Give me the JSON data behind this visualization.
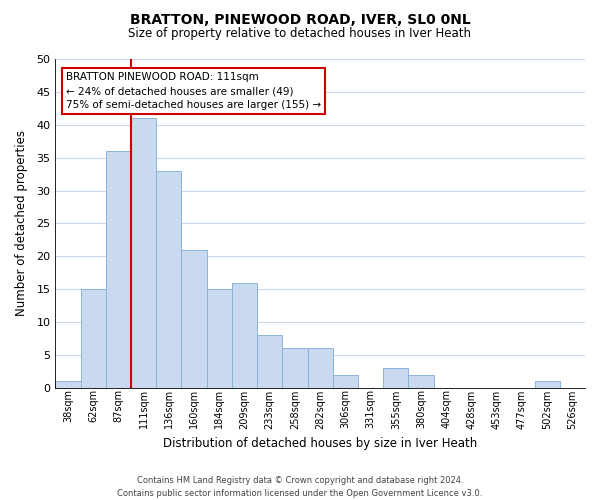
{
  "title": "BRATTON, PINEWOOD ROAD, IVER, SL0 0NL",
  "subtitle": "Size of property relative to detached houses in Iver Heath",
  "xlabel": "Distribution of detached houses by size in Iver Heath",
  "ylabel": "Number of detached properties",
  "bar_labels": [
    "38sqm",
    "62sqm",
    "87sqm",
    "111sqm",
    "136sqm",
    "160sqm",
    "184sqm",
    "209sqm",
    "233sqm",
    "258sqm",
    "282sqm",
    "306sqm",
    "331sqm",
    "355sqm",
    "380sqm",
    "404sqm",
    "428sqm",
    "453sqm",
    "477sqm",
    "502sqm",
    "526sqm"
  ],
  "bar_values": [
    1,
    15,
    36,
    41,
    33,
    21,
    15,
    16,
    8,
    6,
    6,
    2,
    0,
    3,
    2,
    0,
    0,
    0,
    0,
    1,
    0
  ],
  "bar_color": "#c9d9f0",
  "bar_edge_color": "#8ab4d8",
  "vline_x": 2.5,
  "vline_color": "#cc0000",
  "ylim": [
    0,
    50
  ],
  "yticks": [
    0,
    5,
    10,
    15,
    20,
    25,
    30,
    35,
    40,
    45,
    50
  ],
  "annotation_title": "BRATTON PINEWOOD ROAD: 111sqm",
  "annotation_line1": "← 24% of detached houses are smaller (49)",
  "annotation_line2": "75% of semi-detached houses are larger (155) →",
  "annotation_box_color": "#ffffff",
  "annotation_box_edge": "#cc0000",
  "footer_line1": "Contains HM Land Registry data © Crown copyright and database right 2024.",
  "footer_line2": "Contains public sector information licensed under the Open Government Licence v3.0.",
  "background_color": "#ffffff",
  "grid_color": "#ccdaed"
}
